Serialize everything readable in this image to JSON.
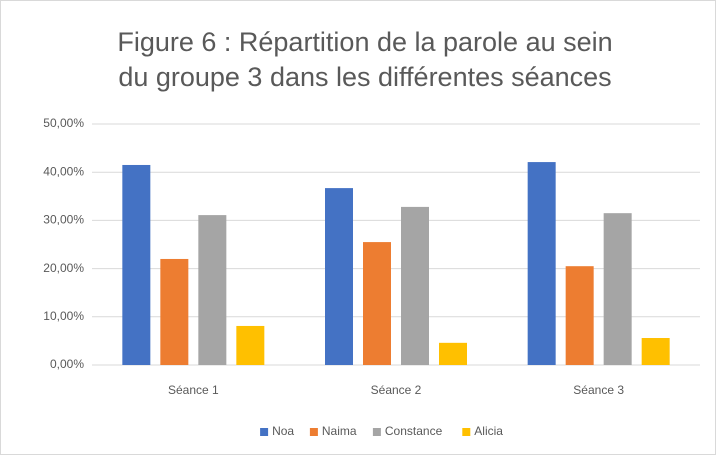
{
  "chart_data": {
    "type": "bar",
    "title": [
      "Figure 6 : Répartition de la parole au sein",
      "du groupe 3 dans les différentes séances"
    ],
    "categories": [
      "Séance 1",
      "Séance 2",
      "Séance 3"
    ],
    "series": [
      {
        "name": "Noa",
        "color": "#4472c4",
        "values": [
          41.5,
          36.7,
          42.1
        ]
      },
      {
        "name": "Naima",
        "color": "#ed7d31",
        "values": [
          22.0,
          25.5,
          20.5
        ]
      },
      {
        "name": "Constance",
        "color": "#a5a5a5",
        "values": [
          31.1,
          32.8,
          31.5
        ]
      },
      {
        "name": "Alicia",
        "color": "#ffc000",
        "values": [
          8.1,
          4.6,
          5.6
        ]
      }
    ],
    "ylim": [
      0,
      50
    ],
    "yticks": [
      {
        "value": 0,
        "label": "0,00%"
      },
      {
        "value": 10,
        "label": "10,00%"
      },
      {
        "value": 20,
        "label": "20,00%"
      },
      {
        "value": 30,
        "label": "30,00%"
      },
      {
        "value": 40,
        "label": "40,00%"
      },
      {
        "value": 50,
        "label": "50,00%"
      }
    ],
    "grid": true,
    "legend": "bottom"
  }
}
